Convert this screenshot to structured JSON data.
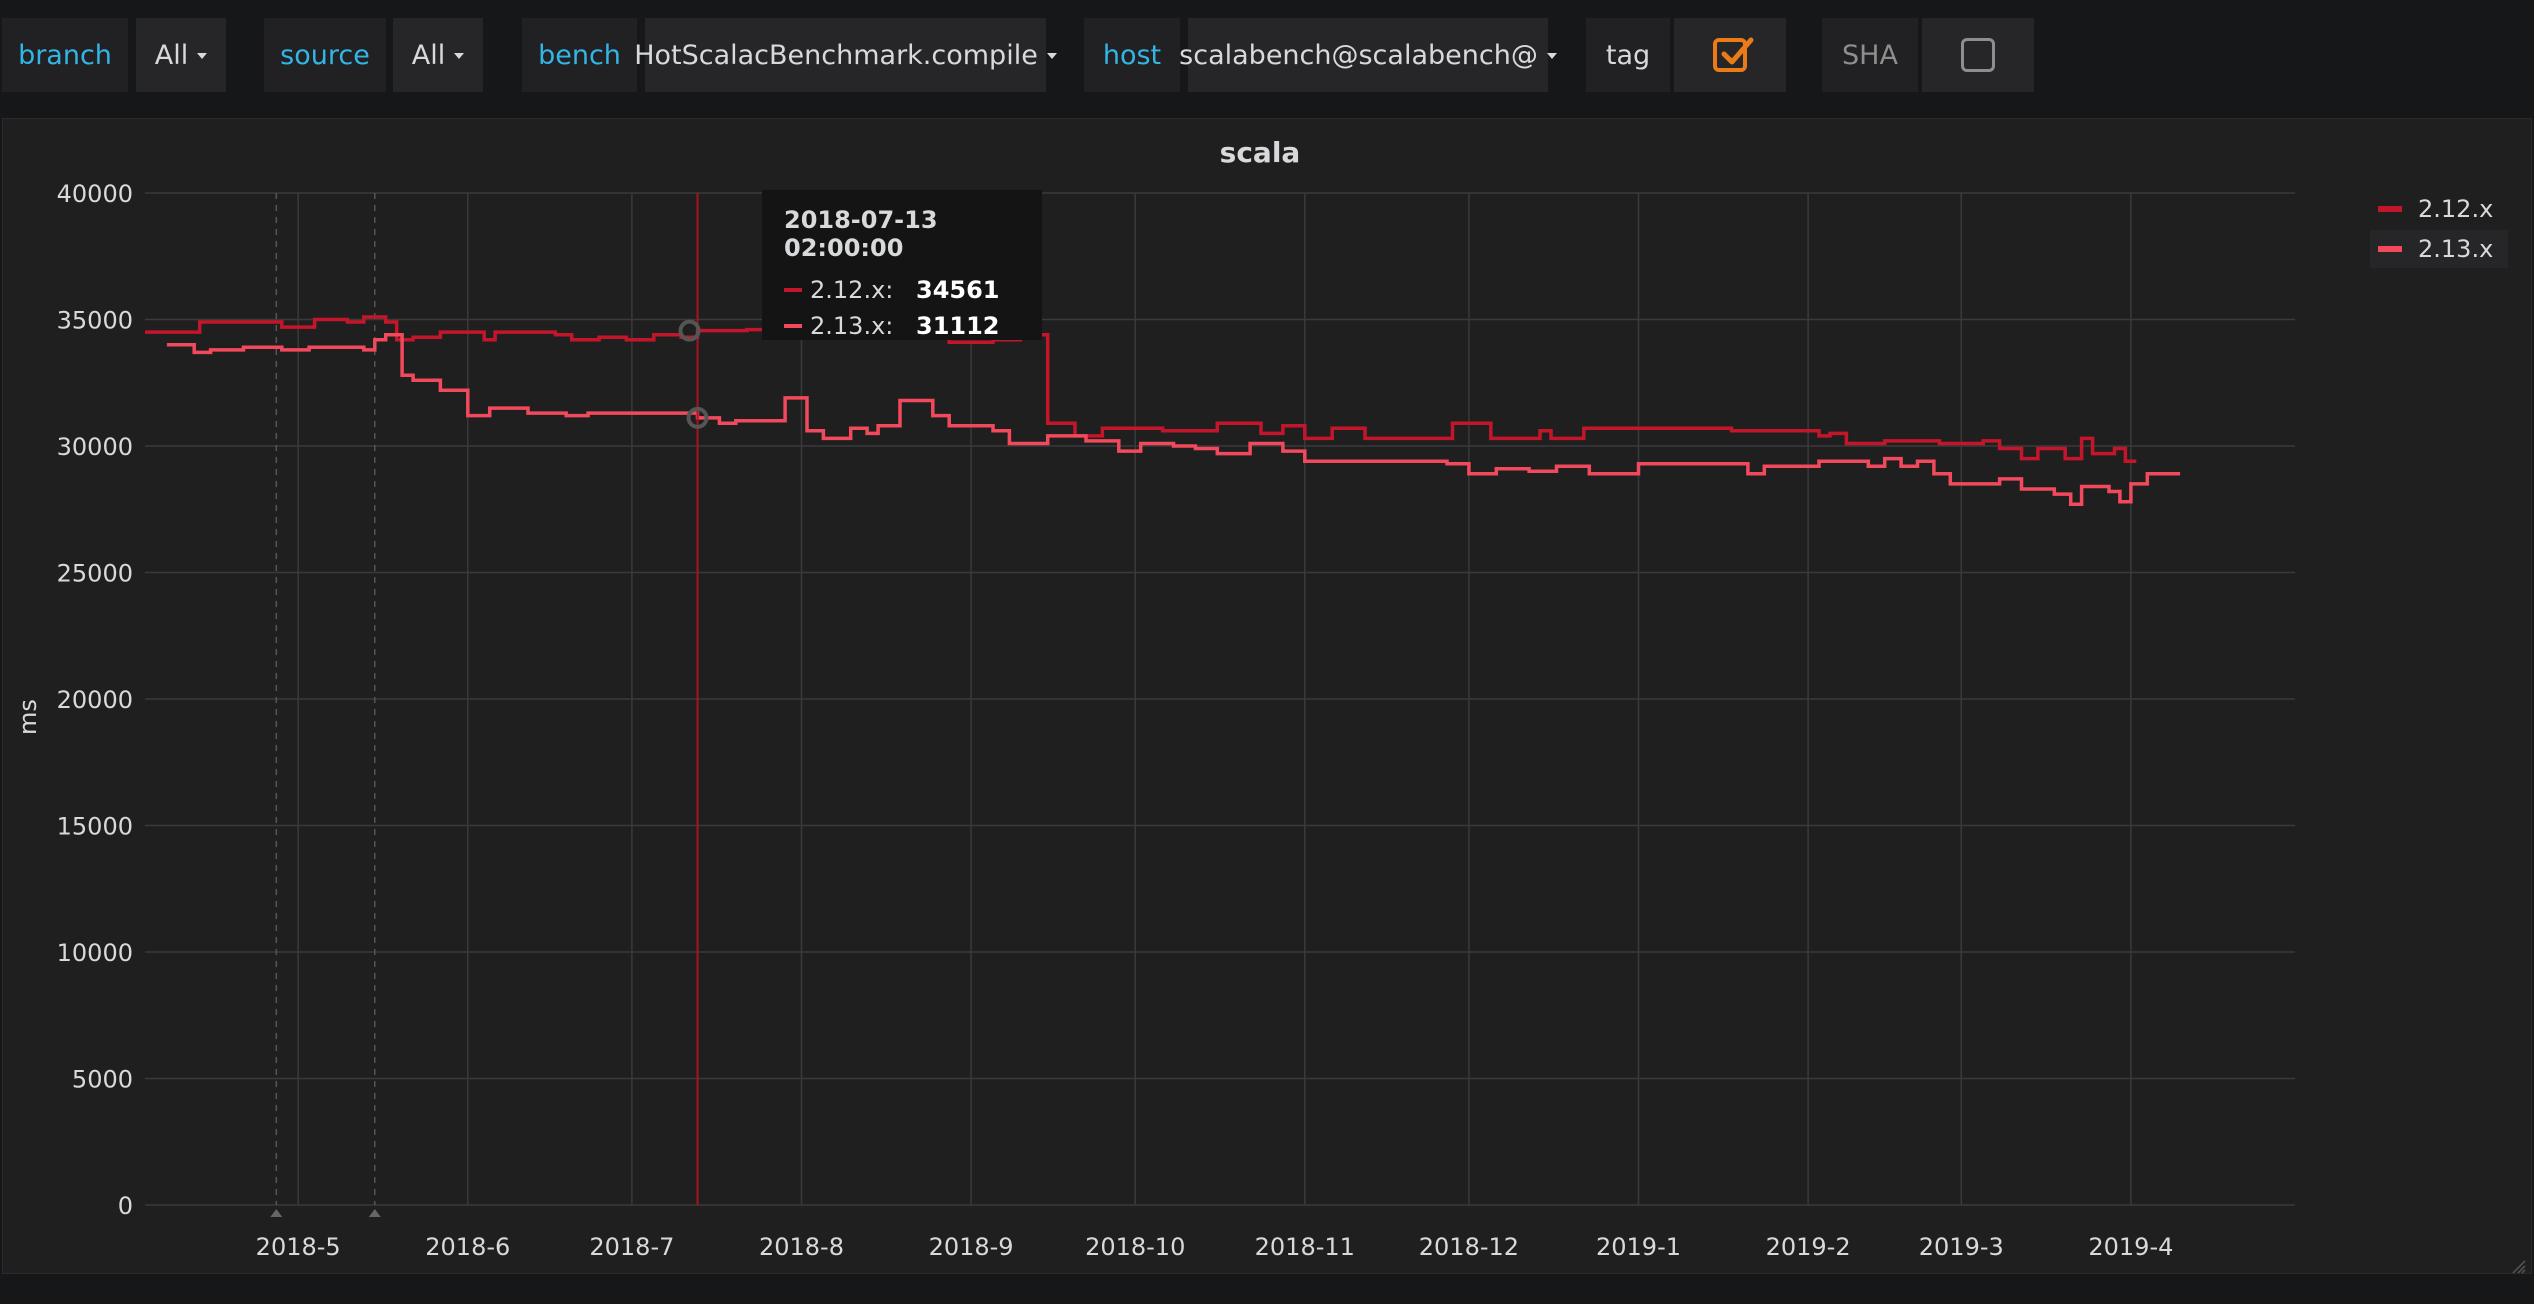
{
  "variables": {
    "branch": {
      "label": "branch",
      "value": "All"
    },
    "source": {
      "label": "source",
      "value": "All"
    },
    "bench": {
      "label": "bench",
      "value": "HotScalacBenchmark.compile"
    },
    "host": {
      "label": "host",
      "value": "scalabench@scalabench@"
    },
    "tag": {
      "label": "tag",
      "checked": true
    },
    "sha": {
      "label": "SHA",
      "checked": false
    }
  },
  "panel": {
    "title": "scala"
  },
  "legend": [
    {
      "name": "2.12.x",
      "color": "#c4162a"
    },
    {
      "name": "2.13.x",
      "color": "#f2495c"
    }
  ],
  "tooltip": {
    "time": "2018-07-13 02:00:00",
    "rows": [
      {
        "name": "2.12.x:",
        "value": "34561",
        "color": "#c4162a"
      },
      {
        "name": "2.13.x:",
        "value": "31112",
        "color": "#f2495c"
      }
    ]
  },
  "chart_data": {
    "type": "line",
    "title": "scala",
    "ylabel": "ms",
    "xlabel": "",
    "ylim": [
      0,
      40000
    ],
    "yticks": [
      0,
      5000,
      10000,
      15000,
      20000,
      25000,
      30000,
      35000,
      40000
    ],
    "xlim": [
      "2018-04-03",
      "2019-05-01"
    ],
    "xticks": [
      {
        "date": "2018-05-01",
        "label": "2018-5"
      },
      {
        "date": "2018-06-01",
        "label": "2018-6"
      },
      {
        "date": "2018-07-01",
        "label": "2018-7"
      },
      {
        "date": "2018-08-01",
        "label": "2018-8"
      },
      {
        "date": "2018-09-01",
        "label": "2018-9"
      },
      {
        "date": "2018-10-01",
        "label": "2018-10"
      },
      {
        "date": "2018-11-01",
        "label": "2018-11"
      },
      {
        "date": "2018-12-01",
        "label": "2018-12"
      },
      {
        "date": "2019-01-01",
        "label": "2019-1"
      },
      {
        "date": "2019-02-01",
        "label": "2019-2"
      },
      {
        "date": "2019-03-01",
        "label": "2019-3"
      },
      {
        "date": "2019-04-01",
        "label": "2019-4"
      }
    ],
    "grid": true,
    "legend_position": "right",
    "hover_time": "2018-07-13",
    "annotations": [
      "2018-04-27",
      "2018-05-15"
    ],
    "series": [
      {
        "name": "2.12.x",
        "color": "#c4162a",
        "step": true,
        "points": [
          [
            "2018-04-03",
            34500
          ],
          [
            "2018-04-13",
            34900
          ],
          [
            "2018-04-28",
            34700
          ],
          [
            "2018-05-04",
            35000
          ],
          [
            "2018-05-10",
            34900
          ],
          [
            "2018-05-13",
            35100
          ],
          [
            "2018-05-17",
            34900
          ],
          [
            "2018-05-19",
            34200
          ],
          [
            "2018-05-22",
            34300
          ],
          [
            "2018-05-27",
            34500
          ],
          [
            "2018-06-04",
            34200
          ],
          [
            "2018-06-06",
            34500
          ],
          [
            "2018-06-17",
            34400
          ],
          [
            "2018-06-20",
            34200
          ],
          [
            "2018-06-25",
            34300
          ],
          [
            "2018-06-30",
            34200
          ],
          [
            "2018-07-05",
            34400
          ],
          [
            "2018-07-10",
            34300
          ],
          [
            "2018-07-13",
            34561
          ],
          [
            "2018-07-22",
            34600
          ],
          [
            "2018-08-03",
            34500
          ],
          [
            "2018-08-28",
            34100
          ],
          [
            "2018-09-05",
            34200
          ],
          [
            "2018-09-10",
            34400
          ],
          [
            "2018-09-15",
            30900
          ],
          [
            "2018-09-20",
            30400
          ],
          [
            "2018-09-25",
            30700
          ],
          [
            "2018-10-06",
            30600
          ],
          [
            "2018-10-16",
            30900
          ],
          [
            "2018-10-24",
            30500
          ],
          [
            "2018-10-28",
            30800
          ],
          [
            "2018-11-01",
            30300
          ],
          [
            "2018-11-06",
            30700
          ],
          [
            "2018-11-12",
            30300
          ],
          [
            "2018-11-28",
            30900
          ],
          [
            "2018-12-05",
            30300
          ],
          [
            "2018-12-14",
            30600
          ],
          [
            "2018-12-16",
            30300
          ],
          [
            "2018-12-22",
            30700
          ],
          [
            "2019-01-18",
            30600
          ],
          [
            "2019-02-03",
            30400
          ],
          [
            "2019-02-05",
            30500
          ],
          [
            "2019-02-08",
            30100
          ],
          [
            "2019-02-15",
            30200
          ],
          [
            "2019-02-25",
            30100
          ],
          [
            "2019-03-05",
            30200
          ],
          [
            "2019-03-08",
            29900
          ],
          [
            "2019-03-12",
            29500
          ],
          [
            "2019-03-15",
            29900
          ],
          [
            "2019-03-20",
            29500
          ],
          [
            "2019-03-23",
            30300
          ],
          [
            "2019-03-25",
            29700
          ],
          [
            "2019-03-29",
            29900
          ],
          [
            "2019-03-31",
            29400
          ],
          [
            "2019-04-02",
            29400
          ]
        ]
      },
      {
        "name": "2.13.x",
        "color": "#f2495c",
        "step": true,
        "points": [
          [
            "2018-04-07",
            34000
          ],
          [
            "2018-04-12",
            33700
          ],
          [
            "2018-04-15",
            33800
          ],
          [
            "2018-04-21",
            33900
          ],
          [
            "2018-04-28",
            33800
          ],
          [
            "2018-05-03",
            33900
          ],
          [
            "2018-05-13",
            33800
          ],
          [
            "2018-05-15",
            34200
          ],
          [
            "2018-05-17",
            34400
          ],
          [
            "2018-05-20",
            32800
          ],
          [
            "2018-05-22",
            32600
          ],
          [
            "2018-05-27",
            32200
          ],
          [
            "2018-06-01",
            31200
          ],
          [
            "2018-06-05",
            31500
          ],
          [
            "2018-06-12",
            31300
          ],
          [
            "2018-06-19",
            31200
          ],
          [
            "2018-06-23",
            31300
          ],
          [
            "2018-07-13",
            31112
          ],
          [
            "2018-07-17",
            30900
          ],
          [
            "2018-07-20",
            31000
          ],
          [
            "2018-07-29",
            31900
          ],
          [
            "2018-08-02",
            30600
          ],
          [
            "2018-08-05",
            30300
          ],
          [
            "2018-08-10",
            30700
          ],
          [
            "2018-08-13",
            30500
          ],
          [
            "2018-08-15",
            30800
          ],
          [
            "2018-08-19",
            31800
          ],
          [
            "2018-08-25",
            31200
          ],
          [
            "2018-08-28",
            30800
          ],
          [
            "2018-09-05",
            30600
          ],
          [
            "2018-09-08",
            30100
          ],
          [
            "2018-09-15",
            30400
          ],
          [
            "2018-09-22",
            30200
          ],
          [
            "2018-09-28",
            29800
          ],
          [
            "2018-10-02",
            30100
          ],
          [
            "2018-10-08",
            30000
          ],
          [
            "2018-10-12",
            29900
          ],
          [
            "2018-10-16",
            29700
          ],
          [
            "2018-10-22",
            30100
          ],
          [
            "2018-10-28",
            29800
          ],
          [
            "2018-11-01",
            29400
          ],
          [
            "2018-11-27",
            29300
          ],
          [
            "2018-12-01",
            28900
          ],
          [
            "2018-12-06",
            29100
          ],
          [
            "2018-12-12",
            29000
          ],
          [
            "2018-12-17",
            29200
          ],
          [
            "2018-12-23",
            28900
          ],
          [
            "2019-01-01",
            29300
          ],
          [
            "2019-01-21",
            28900
          ],
          [
            "2019-01-24",
            29200
          ],
          [
            "2019-02-03",
            29400
          ],
          [
            "2019-02-12",
            29200
          ],
          [
            "2019-02-15",
            29500
          ],
          [
            "2019-02-18",
            29200
          ],
          [
            "2019-02-21",
            29400
          ],
          [
            "2019-02-24",
            28900
          ],
          [
            "2019-02-27",
            28500
          ],
          [
            "2019-03-08",
            28700
          ],
          [
            "2019-03-12",
            28300
          ],
          [
            "2019-03-18",
            28100
          ],
          [
            "2019-03-21",
            27700
          ],
          [
            "2019-03-23",
            28400
          ],
          [
            "2019-03-28",
            28200
          ],
          [
            "2019-03-30",
            27800
          ],
          [
            "2019-04-01",
            28500
          ],
          [
            "2019-04-04",
            28900
          ],
          [
            "2019-04-10",
            28900
          ]
        ]
      }
    ]
  }
}
